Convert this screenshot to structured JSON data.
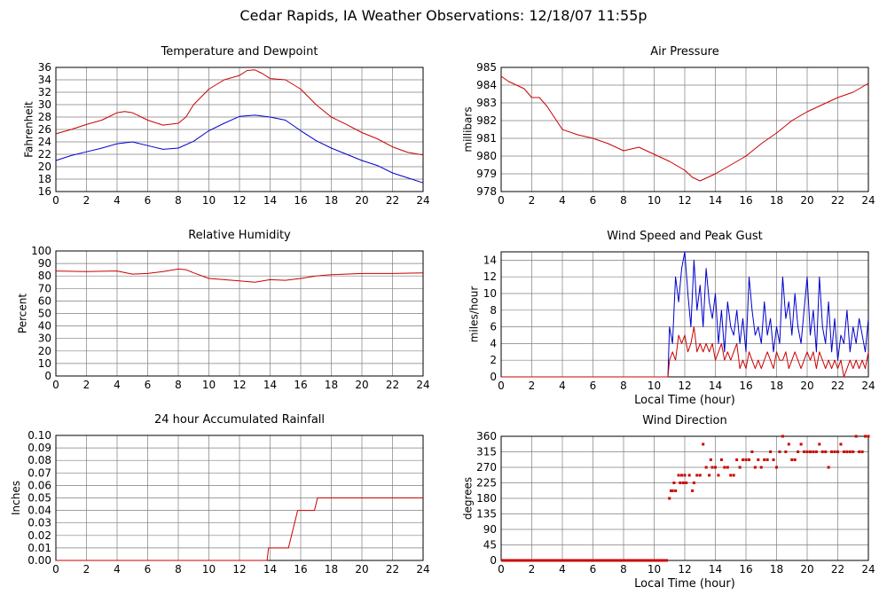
{
  "page": {
    "title": "Cedar Rapids, IA Weather Observations: 12/18/07 11:55p"
  },
  "colors": {
    "red": "#cc0000",
    "blue": "#0000cc",
    "grid": "#7f7f7f",
    "axis": "#000000"
  },
  "chart_data": [
    {
      "id": "temperature",
      "type": "line",
      "title": "Temperature and Dewpoint",
      "xlabel": "",
      "ylabel": "Fahrenheit",
      "xlim": [
        0,
        24
      ],
      "ylim": [
        16,
        36
      ],
      "xticks": [
        "0",
        "2",
        "4",
        "6",
        "8",
        "10",
        "12",
        "14",
        "16",
        "18",
        "20",
        "22",
        "24"
      ],
      "yticks": [
        "16",
        "18",
        "20",
        "22",
        "24",
        "26",
        "28",
        "30",
        "32",
        "34",
        "36"
      ],
      "grid": true,
      "series": [
        {
          "color": "#cc0000",
          "x": [
            0,
            1,
            2,
            3,
            4,
            4.5,
            5,
            6,
            7,
            8,
            8.5,
            9,
            10,
            11,
            12,
            12.5,
            13,
            13.5,
            14,
            15,
            16,
            17,
            18,
            19,
            20,
            21,
            22,
            23,
            24
          ],
          "y": [
            25.3,
            26,
            26.8,
            27.5,
            28.7,
            28.9,
            28.7,
            27.5,
            26.7,
            27,
            28,
            30,
            32.5,
            34,
            34.7,
            35.5,
            35.6,
            35,
            34.2,
            34,
            32.5,
            30,
            28,
            26.8,
            25.5,
            24.5,
            23.2,
            22.3,
            21.9
          ]
        },
        {
          "color": "#0000cc",
          "x": [
            0,
            1,
            2,
            3,
            4,
            5,
            6,
            7,
            8,
            9,
            10,
            11,
            12,
            13,
            14,
            15,
            16,
            17,
            18,
            19,
            20,
            21,
            22,
            23,
            24
          ],
          "y": [
            21,
            21.8,
            22.4,
            23,
            23.7,
            24,
            23.4,
            22.8,
            23,
            24.1,
            25.8,
            27,
            28.1,
            28.3,
            28,
            27.5,
            25.8,
            24.2,
            23,
            22,
            21,
            20.2,
            19,
            18.2,
            17.4
          ]
        }
      ]
    },
    {
      "id": "pressure",
      "type": "line",
      "title": "Air Pressure",
      "xlabel": "",
      "ylabel": "millibars",
      "xlim": [
        0,
        24
      ],
      "ylim": [
        978,
        985
      ],
      "xticks": [
        "0",
        "2",
        "4",
        "6",
        "8",
        "10",
        "12",
        "14",
        "16",
        "18",
        "20",
        "22",
        "24"
      ],
      "yticks": [
        "978",
        "979",
        "980",
        "981",
        "982",
        "983",
        "984",
        "985"
      ],
      "grid": true,
      "series": [
        {
          "color": "#cc0000",
          "x": [
            0,
            0.5,
            1,
            1.5,
            2,
            2.5,
            3,
            4,
            5,
            6,
            7,
            8,
            9,
            10,
            11,
            12,
            12.5,
            13,
            14,
            15,
            16,
            17,
            18,
            19,
            20,
            21,
            22,
            23,
            24
          ],
          "y": [
            984.5,
            984.2,
            984,
            983.8,
            983.3,
            983.3,
            982.8,
            981.5,
            981.2,
            981,
            980.7,
            980.3,
            980.5,
            980.1,
            979.7,
            979.2,
            978.8,
            978.6,
            979,
            979.5,
            980,
            980.7,
            981.3,
            982,
            982.5,
            982.9,
            983.3,
            983.6,
            984.1
          ]
        }
      ]
    },
    {
      "id": "humidity",
      "type": "line",
      "title": "Relative Humidity",
      "xlabel": "",
      "ylabel": "Percent",
      "xlim": [
        0,
        24
      ],
      "ylim": [
        0,
        100
      ],
      "xticks": [
        "0",
        "2",
        "4",
        "6",
        "8",
        "10",
        "12",
        "14",
        "16",
        "18",
        "20",
        "22",
        "24"
      ],
      "yticks": [
        "0",
        "10",
        "20",
        "30",
        "40",
        "50",
        "60",
        "70",
        "80",
        "90",
        "100"
      ],
      "grid": true,
      "series": [
        {
          "color": "#cc0000",
          "x": [
            0,
            2,
            4,
            5,
            6,
            7,
            8,
            8.5,
            9,
            10,
            11,
            12,
            13,
            14,
            15,
            16,
            17,
            18,
            20,
            22,
            24
          ],
          "y": [
            84,
            83.5,
            84,
            81.5,
            82,
            83.5,
            85.5,
            85,
            82.5,
            78,
            77,
            76,
            75,
            77,
            76.5,
            78,
            80,
            81,
            82,
            82,
            82.5
          ]
        }
      ]
    },
    {
      "id": "wind-speed",
      "type": "line",
      "title": "Wind Speed and Peak Gust",
      "xlabel": "Local Time (hour)",
      "ylabel": "miles/hour",
      "xlim": [
        0,
        24
      ],
      "ylim": [
        0,
        15
      ],
      "xticks": [
        "0",
        "2",
        "4",
        "6",
        "8",
        "10",
        "12",
        "14",
        "16",
        "18",
        "20",
        "22",
        "24"
      ],
      "yticks": [
        "0",
        "2",
        "4",
        "6",
        "8",
        "10",
        "12",
        "14"
      ],
      "grid": true,
      "series": [
        {
          "color": "#0000cc",
          "x": [
            0,
            10.9,
            11,
            11.2,
            11.4,
            11.6,
            11.8,
            12,
            12.2,
            12.4,
            12.6,
            12.8,
            13,
            13.2,
            13.4,
            13.6,
            13.8,
            14,
            14.2,
            14.4,
            14.6,
            14.8,
            15,
            15.2,
            15.4,
            15.6,
            15.8,
            16,
            16.2,
            16.4,
            16.6,
            16.8,
            17,
            17.2,
            17.4,
            17.6,
            17.8,
            18,
            18.2,
            18.4,
            18.6,
            18.8,
            19,
            19.2,
            19.4,
            19.6,
            19.8,
            20,
            20.2,
            20.4,
            20.6,
            20.8,
            21,
            21.2,
            21.4,
            21.6,
            21.8,
            22,
            22.2,
            22.4,
            22.6,
            22.8,
            23,
            23.2,
            23.4,
            23.6,
            23.8,
            24
          ],
          "y": [
            0,
            0,
            6,
            4,
            12,
            9,
            13,
            15,
            10,
            6,
            14,
            8,
            11,
            6,
            13,
            9,
            7,
            10,
            4,
            8,
            3,
            9,
            6,
            5,
            8,
            4,
            7,
            3,
            12,
            8,
            5,
            6,
            4,
            9,
            5,
            7,
            3,
            6,
            4,
            12,
            7,
            9,
            5,
            10,
            6,
            4,
            8,
            12,
            5,
            8,
            3,
            12,
            6,
            4,
            9,
            3,
            7,
            2,
            5,
            4,
            8,
            3,
            6,
            4,
            7,
            5,
            3,
            7
          ]
        },
        {
          "color": "#cc0000",
          "x": [
            0,
            10.9,
            11,
            11.2,
            11.4,
            11.6,
            11.8,
            12,
            12.2,
            12.4,
            12.6,
            12.8,
            13,
            13.2,
            13.4,
            13.6,
            13.8,
            14,
            14.2,
            14.4,
            14.6,
            14.8,
            15,
            15.2,
            15.4,
            15.6,
            15.8,
            16,
            16.2,
            16.4,
            16.6,
            16.8,
            17,
            17.2,
            17.4,
            17.6,
            17.8,
            18,
            18.2,
            18.4,
            18.6,
            18.8,
            19,
            19.2,
            19.4,
            19.6,
            19.8,
            20,
            20.2,
            20.4,
            20.6,
            20.8,
            21,
            21.2,
            21.4,
            21.6,
            21.8,
            22,
            22.2,
            22.4,
            22.6,
            22.8,
            23,
            23.2,
            23.4,
            23.6,
            23.8,
            24
          ],
          "y": [
            0,
            0,
            2,
            3,
            2,
            5,
            4,
            5,
            3,
            4,
            6,
            3,
            4,
            3,
            4,
            3,
            4,
            2,
            3,
            4,
            2,
            3,
            2,
            3,
            4,
            1,
            2,
            1,
            3,
            2,
            1,
            2,
            1,
            2,
            3,
            2,
            1,
            3,
            2,
            2,
            3,
            1,
            2,
            3,
            2,
            1,
            2,
            3,
            2,
            3,
            1,
            3,
            2,
            1,
            2,
            1,
            2,
            1,
            2,
            0,
            1,
            2,
            1,
            2,
            1,
            2,
            1,
            3
          ]
        }
      ]
    },
    {
      "id": "rainfall",
      "type": "line",
      "title": "24 hour Accumulated Rainfall",
      "xlabel": "",
      "ylabel": "Inches",
      "xlim": [
        0,
        24
      ],
      "ylim": [
        0,
        0.1
      ],
      "xticks": [
        "0",
        "2",
        "4",
        "6",
        "8",
        "10",
        "12",
        "14",
        "16",
        "18",
        "20",
        "22",
        "24"
      ],
      "yticks": [
        "0.00",
        "0.01",
        "0.02",
        "0.03",
        "0.04",
        "0.05",
        "0.06",
        "0.07",
        "0.08",
        "0.09",
        "0.10"
      ],
      "grid": true,
      "series": [
        {
          "color": "#cc0000",
          "x": [
            0,
            13.8,
            13.9,
            15.2,
            15.6,
            15.8,
            16.9,
            17.1,
            24
          ],
          "y": [
            0,
            0,
            0.01,
            0.01,
            0.03,
            0.04,
            0.04,
            0.05,
            0.05
          ]
        }
      ]
    },
    {
      "id": "wind-direction",
      "type": "scatter",
      "title": "Wind Direction",
      "xlabel": "Local Time (hour)",
      "ylabel": "degrees",
      "xlim": [
        0,
        24
      ],
      "ylim": [
        0,
        360
      ],
      "xticks": [
        "0",
        "2",
        "4",
        "6",
        "8",
        "10",
        "12",
        "14",
        "16",
        "18",
        "20",
        "22",
        "24"
      ],
      "yticks": [
        "0",
        "45",
        "90",
        "135",
        "180",
        "225",
        "270",
        "315",
        "360"
      ],
      "grid": true,
      "series": [
        {
          "color": "#cc0000",
          "x": [
            0,
            0.5,
            1,
            1.5,
            2,
            2.5,
            3,
            3.5,
            4,
            4.5,
            5,
            5.5,
            6,
            6.5,
            7,
            7.5,
            8,
            8.5,
            9,
            9.5,
            10,
            10.5,
            10.9,
            11,
            11.1,
            11.2,
            11.3,
            11.4,
            11.6,
            11.7,
            11.8,
            11.9,
            12,
            12.1,
            12.3,
            12.5,
            12.6,
            12.8,
            13,
            13.2,
            13.4,
            13.6,
            13.7,
            13.8,
            14,
            14.2,
            14.4,
            14.6,
            14.8,
            15,
            15.2,
            15.4,
            15.6,
            15.8,
            16,
            16.2,
            16.4,
            16.6,
            16.8,
            17,
            17.2,
            17.4,
            17.6,
            17.8,
            18,
            18.2,
            18.4,
            18.6,
            18.8,
            19,
            19.2,
            19.4,
            19.6,
            19.8,
            20,
            20.2,
            20.4,
            20.6,
            20.8,
            21,
            21.2,
            21.4,
            21.6,
            21.8,
            22,
            22.2,
            22.4,
            22.6,
            22.8,
            23,
            23.2,
            23.4,
            23.6,
            23.8,
            24
          ],
          "y": [
            0,
            0,
            0,
            0,
            0,
            0,
            0,
            0,
            0,
            0,
            0,
            0,
            0,
            0,
            0,
            0,
            0,
            0,
            0,
            0,
            0,
            0,
            0,
            180,
            202,
            202,
            225,
            202,
            247,
            225,
            247,
            225,
            247,
            225,
            247,
            202,
            225,
            247,
            247,
            337,
            270,
            247,
            292,
            270,
            270,
            247,
            292,
            270,
            270,
            247,
            247,
            292,
            270,
            292,
            292,
            292,
            315,
            270,
            292,
            270,
            292,
            292,
            315,
            292,
            270,
            315,
            360,
            315,
            337,
            292,
            292,
            315,
            337,
            315,
            315,
            315,
            315,
            315,
            337,
            315,
            315,
            270,
            315,
            315,
            315,
            337,
            315,
            315,
            315,
            315,
            360,
            315,
            315,
            360,
            360
          ]
        }
      ]
    }
  ]
}
